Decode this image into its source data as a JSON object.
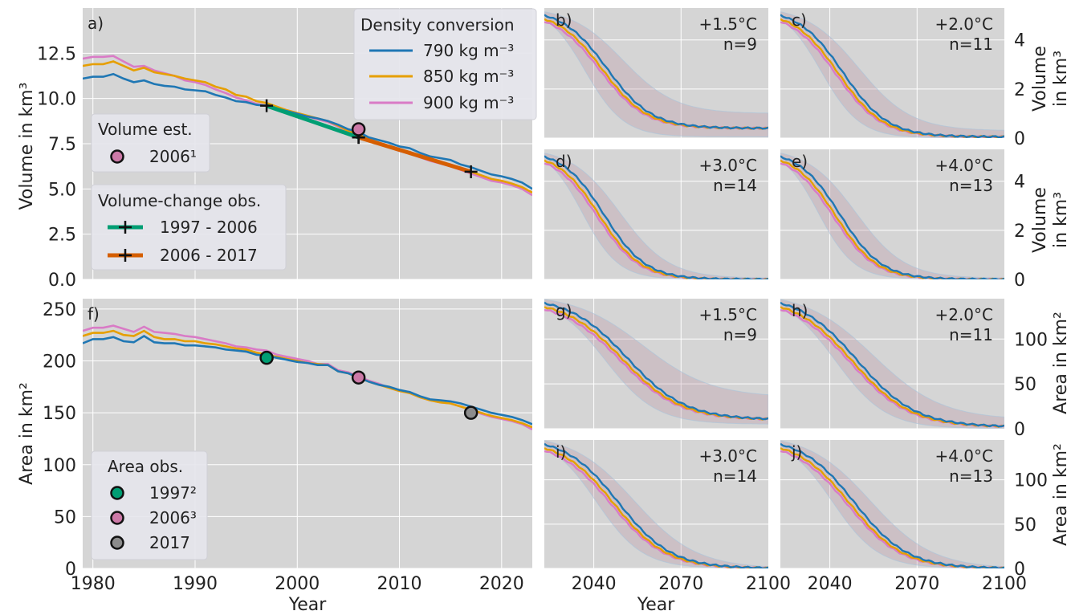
{
  "colors": {
    "panel_bg": "#d5d5d5",
    "grid": "#ffffff",
    "s790": "#1f77b4",
    "s850": "#e69f00",
    "s900": "#d97bc6",
    "obs1997": "#009e73",
    "obs2006": "#d55e00",
    "marker2006": "#cc79a7",
    "marker2017": "#8c8c8c",
    "band": "#b88c9e"
  },
  "legends": {
    "density": {
      "title": "Density conversion",
      "items": [
        "790 kg m⁻³",
        "850 kg m⁻³",
        "900 kg m⁻³"
      ]
    },
    "volume_est": {
      "title": "Volume est.",
      "items": [
        "2006¹"
      ]
    },
    "volume_change": {
      "title": "Volume-change obs.",
      "items": [
        "1997 - 2006",
        "2006 - 2017"
      ]
    },
    "area_obs": {
      "title": "Area obs.",
      "items": [
        "1997²",
        "2006³",
        "2017"
      ]
    }
  },
  "axis_labels": {
    "volume_left": "Volume in km³",
    "area_left": "Area in km²",
    "year": "Year",
    "volume_right_1": "Volume",
    "volume_right_2": "in km³",
    "area_right": "Area in km²"
  },
  "chart_data": [
    {
      "panel": "a)",
      "type": "line",
      "xlim": [
        1979,
        2023
      ],
      "ylim": [
        0,
        15
      ],
      "xticks": [
        "1980",
        "1990",
        "2000",
        "2010",
        "2020"
      ],
      "yticks": [
        "0.0",
        "2.5",
        "5.0",
        "7.5",
        "10.0",
        "12.5"
      ],
      "x": [
        1979,
        1980,
        1981,
        1982,
        1983,
        1984,
        1985,
        1986,
        1987,
        1988,
        1989,
        1990,
        1991,
        1992,
        1993,
        1994,
        1995,
        1996,
        1997,
        1998,
        1999,
        2000,
        2001,
        2002,
        2003,
        2004,
        2005,
        2006,
        2007,
        2008,
        2009,
        2010,
        2011,
        2012,
        2013,
        2014,
        2015,
        2016,
        2017,
        2018,
        2019,
        2020,
        2021,
        2022,
        2023
      ],
      "series": [
        {
          "name": "790 kg m⁻³",
          "values": [
            11.1,
            11.2,
            11.2,
            11.35,
            11.1,
            10.9,
            11.0,
            10.8,
            10.7,
            10.65,
            10.5,
            10.45,
            10.4,
            10.2,
            10.05,
            9.85,
            9.8,
            9.65,
            9.6,
            9.45,
            9.3,
            9.15,
            9.0,
            8.9,
            8.75,
            8.55,
            8.3,
            8.15,
            7.85,
            7.7,
            7.55,
            7.35,
            7.25,
            7.0,
            6.8,
            6.7,
            6.6,
            6.35,
            6.2,
            6.0,
            5.8,
            5.7,
            5.55,
            5.35,
            5.0
          ]
        },
        {
          "name": "850 kg m⁻³",
          "values": [
            11.8,
            11.9,
            11.9,
            12.05,
            11.8,
            11.55,
            11.7,
            11.45,
            11.35,
            11.25,
            11.1,
            11.0,
            10.9,
            10.65,
            10.5,
            10.2,
            10.1,
            9.85,
            9.75,
            9.55,
            9.35,
            9.2,
            9.05,
            8.9,
            8.75,
            8.5,
            8.2,
            8.0,
            7.75,
            7.55,
            7.35,
            7.15,
            7.05,
            6.8,
            6.6,
            6.45,
            6.35,
            6.1,
            5.95,
            5.75,
            5.55,
            5.45,
            5.3,
            5.1,
            4.8
          ]
        },
        {
          "name": "900 kg m⁻³",
          "values": [
            12.2,
            12.3,
            12.3,
            12.35,
            12.05,
            11.75,
            11.8,
            11.55,
            11.4,
            11.25,
            11.0,
            10.9,
            10.75,
            10.5,
            10.3,
            10.05,
            9.9,
            9.7,
            9.6,
            9.45,
            9.3,
            9.15,
            9.0,
            8.85,
            8.7,
            8.45,
            8.15,
            7.95,
            7.7,
            7.5,
            7.3,
            7.1,
            6.95,
            6.75,
            6.55,
            6.4,
            6.25,
            6.05,
            5.85,
            5.65,
            5.45,
            5.35,
            5.2,
            5.0,
            4.65
          ]
        }
      ],
      "volume_est": [
        {
          "x": 2006,
          "y": 8.3
        }
      ],
      "volume_change_obs": [
        {
          "name": "1997 - 2006",
          "points": [
            [
              1997,
              9.6
            ],
            [
              2006,
              7.85
            ]
          ]
        },
        {
          "name": "2006 - 2017",
          "points": [
            [
              2006,
              7.85
            ],
            [
              2017,
              5.95
            ]
          ]
        }
      ]
    },
    {
      "panel": "f)",
      "type": "line",
      "xlim": [
        1979,
        2023
      ],
      "ylim": [
        0,
        260
      ],
      "xticks": [
        "1980",
        "1990",
        "2000",
        "2010",
        "2020"
      ],
      "yticks": [
        "0",
        "50",
        "100",
        "150",
        "200",
        "250"
      ],
      "x": [
        1979,
        1980,
        1981,
        1982,
        1983,
        1984,
        1985,
        1986,
        1987,
        1988,
        1989,
        1990,
        1991,
        1992,
        1993,
        1994,
        1995,
        1996,
        1997,
        1998,
        1999,
        2000,
        2001,
        2002,
        2003,
        2004,
        2005,
        2006,
        2007,
        2008,
        2009,
        2010,
        2011,
        2012,
        2013,
        2014,
        2015,
        2016,
        2017,
        2018,
        2019,
        2020,
        2021,
        2022,
        2023
      ],
      "series": [
        {
          "name": "790 kg m⁻³",
          "values": [
            217,
            221,
            221,
            223,
            219,
            218,
            224,
            218,
            217,
            217,
            215,
            215,
            214,
            213,
            211,
            210,
            209,
            206,
            205,
            203,
            201,
            199,
            198,
            196,
            196,
            190,
            188,
            184,
            180,
            177,
            175,
            172,
            170,
            166,
            163,
            162,
            161,
            159,
            156,
            153,
            150,
            148,
            146,
            143,
            139
          ]
        },
        {
          "name": "850 kg m⁻³",
          "values": [
            224,
            227,
            227,
            229,
            225,
            224,
            229,
            223,
            221,
            221,
            219,
            219,
            217,
            216,
            214,
            212,
            211,
            208,
            206,
            204,
            202,
            200,
            198,
            197,
            196,
            190,
            188,
            184,
            180,
            177,
            174,
            171,
            169,
            165,
            162,
            160,
            159,
            156,
            153,
            150,
            147,
            145,
            143,
            140,
            136
          ]
        },
        {
          "name": "900 kg m⁻³",
          "values": [
            229,
            232,
            232,
            234,
            231,
            228,
            233,
            228,
            227,
            226,
            224,
            223,
            221,
            219,
            217,
            214,
            213,
            211,
            210,
            206,
            204,
            202,
            200,
            197,
            197,
            191,
            189,
            185,
            181,
            178,
            174,
            171,
            169,
            165,
            162,
            160,
            159,
            156,
            153,
            149,
            146,
            144,
            142,
            139,
            134
          ]
        }
      ],
      "area_obs": [
        {
          "name": "1997²",
          "x": 1997,
          "y": 203
        },
        {
          "name": "2006³",
          "x": 2006,
          "y": 184
        },
        {
          "name": "2017",
          "x": 2017,
          "y": 150
        }
      ]
    },
    {
      "panel": "b)",
      "scenario": "+1.5°C",
      "n": "n=9",
      "type": "line",
      "quantity": "volume",
      "xlim": [
        2023,
        2100
      ],
      "ylim": [
        0,
        5.3
      ],
      "start": 5.0,
      "floor": 0.4,
      "mid": 2043,
      "decay": 0.13,
      "band_lo_floor": 0.05,
      "band_hi_floor": 1.0
    },
    {
      "panel": "c)",
      "scenario": "+2.0°C",
      "n": "n=11",
      "type": "line",
      "quantity": "volume",
      "xlim": [
        2023,
        2100
      ],
      "ylim": [
        0,
        5.3
      ],
      "start": 5.0,
      "floor": 0.05,
      "mid": 2043,
      "decay": 0.13,
      "band_lo_floor": 0.0,
      "band_hi_floor": 0.3
    },
    {
      "panel": "d)",
      "scenario": "+3.0°C",
      "n": "n=14",
      "type": "line",
      "quantity": "volume",
      "xlim": [
        2023,
        2100
      ],
      "ylim": [
        0,
        5.3
      ],
      "start": 5.0,
      "floor": 0.0,
      "mid": 2042,
      "decay": 0.14,
      "band_lo_floor": 0.0,
      "band_hi_floor": 0.05
    },
    {
      "panel": "e)",
      "scenario": "+4.0°C",
      "n": "n=13",
      "type": "line",
      "quantity": "volume",
      "xlim": [
        2023,
        2100
      ],
      "ylim": [
        0,
        5.3
      ],
      "start": 5.0,
      "floor": 0.0,
      "mid": 2042,
      "decay": 0.14,
      "band_lo_floor": 0.0,
      "band_hi_floor": 0.05
    },
    {
      "panel": "g)",
      "scenario": "+1.5°C",
      "n": "n=9",
      "type": "line",
      "quantity": "area",
      "xlim": [
        2023,
        2100
      ],
      "ylim": [
        0,
        145
      ],
      "start": 140,
      "floor": 10,
      "mid": 2050,
      "decay": 0.1,
      "band_lo_floor": 5,
      "band_hi_floor": 35
    },
    {
      "panel": "h)",
      "scenario": "+2.0°C",
      "n": "n=11",
      "type": "line",
      "quantity": "area",
      "xlim": [
        2023,
        2100
      ],
      "ylim": [
        0,
        145
      ],
      "start": 140,
      "floor": 2,
      "mid": 2048,
      "decay": 0.1,
      "band_lo_floor": 0,
      "band_hi_floor": 10
    },
    {
      "panel": "i)",
      "scenario": "+3.0°C",
      "n": "n=14",
      "type": "line",
      "quantity": "area",
      "xlim": [
        2023,
        2100
      ],
      "ylim": [
        0,
        145
      ],
      "start": 140,
      "floor": 0,
      "mid": 2047,
      "decay": 0.11,
      "band_lo_floor": 0,
      "band_hi_floor": 0
    },
    {
      "panel": "j)",
      "scenario": "+4.0°C",
      "n": "n=13",
      "type": "line",
      "quantity": "area",
      "xlim": [
        2023,
        2100
      ],
      "ylim": [
        0,
        145
      ],
      "start": 140,
      "floor": 0,
      "mid": 2047,
      "decay": 0.11,
      "band_lo_floor": 0,
      "band_hi_floor": 0
    }
  ],
  "small_ticks": {
    "x": [
      "2040",
      "2070",
      "2100"
    ],
    "volume_y": [
      "0",
      "2",
      "4"
    ],
    "area_y": [
      "0",
      "50",
      "100"
    ]
  }
}
